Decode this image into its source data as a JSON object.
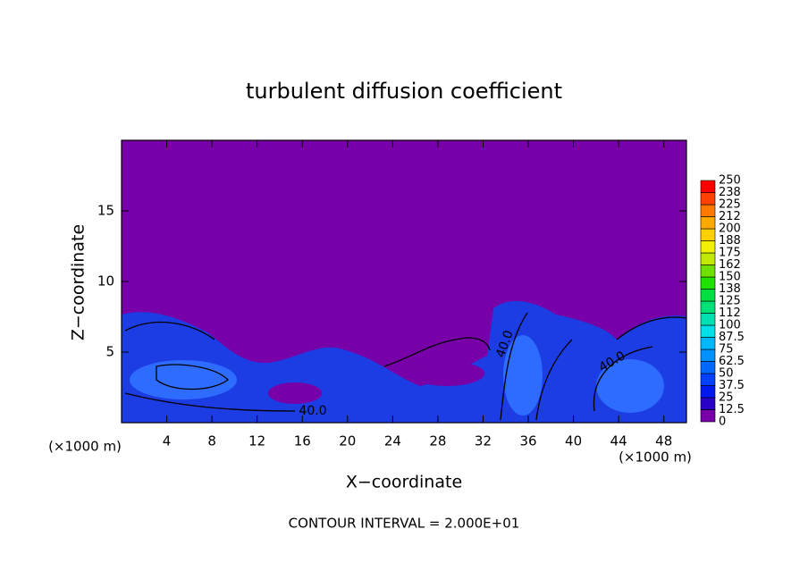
{
  "chart_data": {
    "type": "contour",
    "title": "turbulent diffusion coefficient",
    "x_label": "X−coordinate",
    "y_label": "Z−coordinate",
    "x_unit": "(×1000 m)",
    "y_unit": "(×1000 m)",
    "footer": "CONTOUR INTERVAL = 2.000E+01",
    "xlim": [
      0,
      50
    ],
    "xticks": [
      4,
      8,
      12,
      16,
      20,
      24,
      28,
      32,
      36,
      40,
      44,
      48
    ],
    "ylim": [
      0,
      20
    ],
    "yticks": [
      5,
      10,
      15
    ],
    "contour_labels": [
      "40.0",
      "40.0",
      "40.0"
    ],
    "colorbar": {
      "ticks": [
        0,
        12.5,
        25,
        37.5,
        50,
        62.5,
        75,
        87.5,
        100,
        112,
        125,
        138,
        150,
        162,
        175,
        188,
        200,
        212,
        225,
        238,
        250
      ],
      "colors": [
        "#7800a8",
        "#2800c8",
        "#0018f0",
        "#0040ff",
        "#0068ff",
        "#0090ff",
        "#00b8ff",
        "#00e0e8",
        "#00e0b0",
        "#00e078",
        "#00e040",
        "#20e000",
        "#70e000",
        "#c0e800",
        "#f0f000",
        "#ffd000",
        "#ffa800",
        "#ff7800",
        "#ff4000",
        "#ff0000",
        "#f08888"
      ]
    }
  }
}
